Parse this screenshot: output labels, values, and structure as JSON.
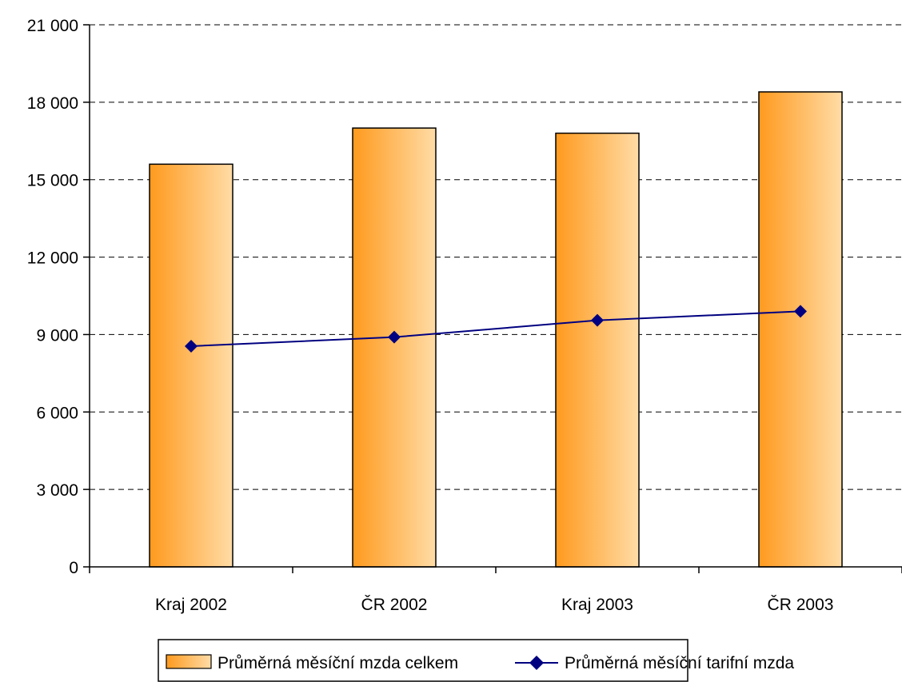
{
  "chart_data": {
    "type": "bar",
    "title": "",
    "xlabel": "",
    "ylabel": "",
    "categories": [
      "Kraj 2002",
      "ČR 2002",
      "Kraj 2003",
      "ČR 2003"
    ],
    "ylim": [
      0,
      21000
    ],
    "yticks": [
      0,
      3000,
      6000,
      9000,
      12000,
      15000,
      18000,
      21000
    ],
    "ytick_labels": [
      "0",
      "3 000",
      "6 000",
      "9 000",
      "12 000",
      "15 000",
      "18 000",
      "21 000"
    ],
    "grid": "horizontal-dashed",
    "legend_position": "bottom",
    "series": [
      {
        "name": "Průměrná měsíční mzda celkem",
        "type": "bar",
        "color": "#ff9a1e",
        "values": [
          15600,
          17000,
          16800,
          18400
        ]
      },
      {
        "name": "Průměrná měsíční tarifní mzda",
        "type": "line",
        "color": "#000080",
        "values": [
          8550,
          8900,
          9550,
          9900
        ]
      }
    ]
  }
}
